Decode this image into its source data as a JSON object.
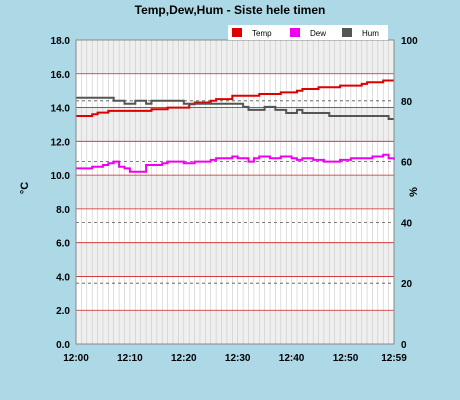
{
  "chart_data": {
    "type": "line",
    "title": "Temp,Dew,Hum - Siste hele timen",
    "ylabel": "°C",
    "y2label": "%",
    "ylim": [
      0,
      18
    ],
    "y2lim": [
      0,
      100
    ],
    "xlim": [
      0,
      59
    ],
    "yticks": [
      "0.0",
      "2.0",
      "4.0",
      "6.0",
      "8.0",
      "10.0",
      "12.0",
      "14.0",
      "16.0",
      "18.0"
    ],
    "y2ticks": [
      "0",
      "20",
      "40",
      "60",
      "80",
      "100"
    ],
    "xticks": [
      {
        "label": "12:00",
        "value": 0
      },
      {
        "label": "12:10",
        "value": 10
      },
      {
        "label": "12:20",
        "value": 20
      },
      {
        "label": "12:30",
        "value": 30
      },
      {
        "label": "12:40",
        "value": 40
      },
      {
        "label": "12:50",
        "value": 50
      },
      {
        "label": "12:59",
        "value": 59
      }
    ],
    "legend_position": "top-right",
    "grid": true,
    "series": [
      {
        "name": "Temp",
        "axis": "left",
        "color": "#dd0000",
        "x": [
          0,
          3,
          4,
          6,
          13,
          14,
          17,
          21,
          22,
          25,
          26,
          28,
          29,
          32,
          34,
          35,
          38,
          39,
          41,
          42,
          44,
          45,
          47,
          49,
          51,
          53,
          54,
          56,
          57,
          59
        ],
        "y": [
          13.5,
          13.6,
          13.7,
          13.8,
          13.8,
          13.9,
          14.0,
          14.2,
          14.3,
          14.4,
          14.5,
          14.5,
          14.7,
          14.7,
          14.8,
          14.8,
          14.9,
          14.9,
          15.0,
          15.1,
          15.1,
          15.2,
          15.2,
          15.3,
          15.3,
          15.4,
          15.5,
          15.5,
          15.6,
          15.6
        ]
      },
      {
        "name": "Dew",
        "axis": "left",
        "color": "#ee00ee",
        "x": [
          0,
          3,
          5,
          6,
          7,
          8,
          9,
          10,
          12,
          13,
          14,
          16,
          17,
          18,
          20,
          22,
          23,
          25,
          26,
          27,
          29,
          30,
          31,
          32,
          33,
          34,
          35,
          36,
          37,
          38,
          39,
          40,
          41,
          42,
          44,
          46,
          47,
          49,
          51,
          53,
          55,
          57,
          58,
          59
        ],
        "y": [
          10.4,
          10.5,
          10.6,
          10.7,
          10.8,
          10.5,
          10.4,
          10.2,
          10.2,
          10.6,
          10.6,
          10.7,
          10.8,
          10.8,
          10.7,
          10.8,
          10.8,
          10.9,
          11.0,
          11.0,
          11.1,
          11.0,
          11.0,
          10.8,
          11.0,
          11.1,
          11.1,
          11.0,
          11.0,
          11.1,
          11.1,
          11.0,
          10.9,
          11.0,
          10.9,
          10.8,
          10.8,
          10.9,
          11.0,
          11.0,
          11.1,
          11.2,
          11.0,
          10.9
        ]
      },
      {
        "name": "Hum",
        "axis": "right",
        "color": "#555555",
        "x": [
          0,
          6,
          7,
          8,
          9,
          10,
          11,
          13,
          14,
          16,
          17,
          20,
          21,
          27,
          29,
          31,
          32,
          33,
          35,
          37,
          38,
          39,
          41,
          42,
          45,
          47,
          49,
          57,
          58,
          59
        ],
        "y": [
          81,
          81,
          80,
          80,
          79,
          79,
          80,
          79,
          80,
          80,
          80,
          79,
          79,
          79,
          79,
          78,
          77,
          77,
          78,
          77,
          77,
          76,
          77,
          76,
          76,
          75,
          75,
          75,
          74,
          74
        ]
      }
    ]
  }
}
